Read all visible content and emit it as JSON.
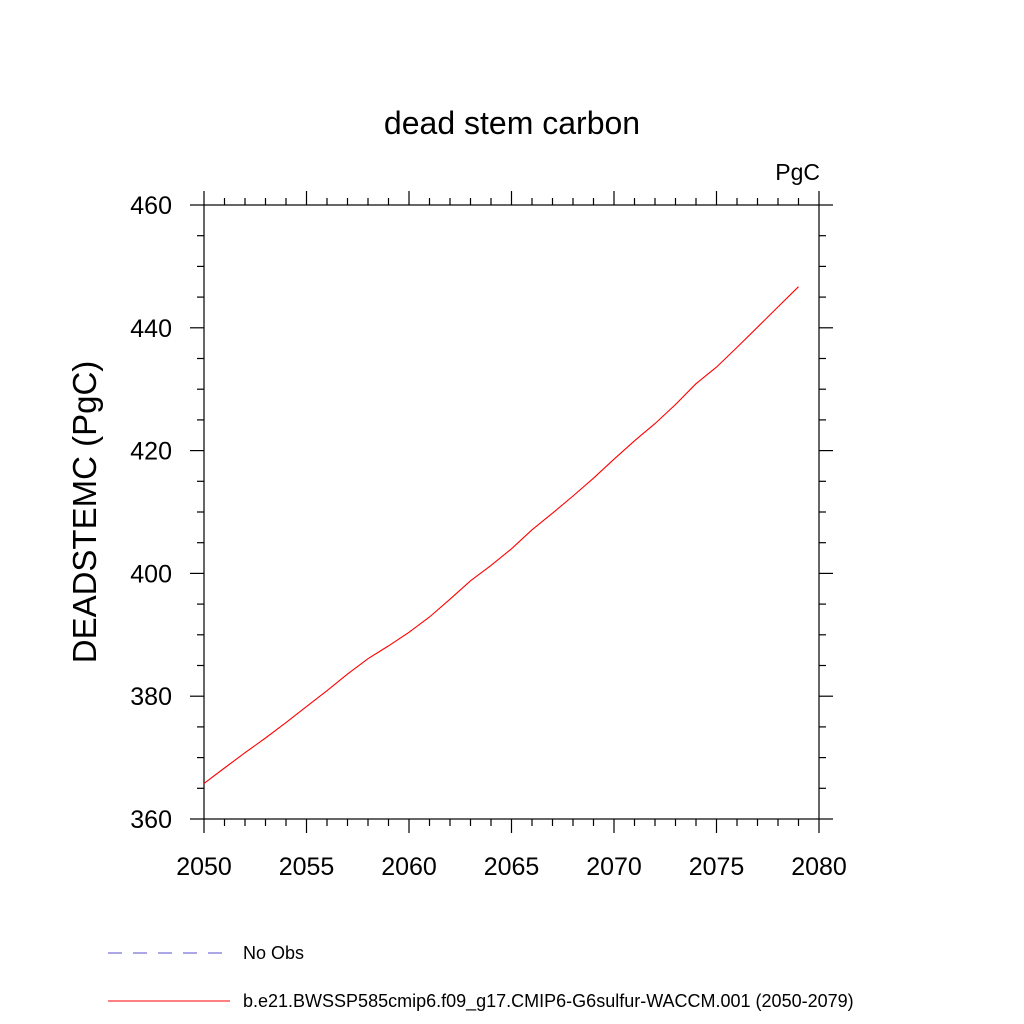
{
  "chart_data": {
    "type": "line",
    "title": "dead stem carbon",
    "units_label": "PgC",
    "xlabel": "",
    "ylabel": "DEADSTEMC  (PgC)",
    "xlim": [
      2050,
      2080
    ],
    "ylim": [
      360,
      460
    ],
    "x_ticks": [
      "2050",
      "2055",
      "2060",
      "2065",
      "2070",
      "2075",
      "2080"
    ],
    "y_ticks": [
      "360",
      "380",
      "400",
      "420",
      "440",
      "460"
    ],
    "grid": false,
    "legend_position": "bottom",
    "legend": [
      {
        "label": "No Obs",
        "color": "#5a4fcf",
        "dash": "dashed"
      },
      {
        "label": "b.e21.BWSSP585cmip6.f09_g17.CMIP6-G6sulfur-WACCM.001 (2050-2079)",
        "color": "#ff0000",
        "dash": "solid"
      }
    ],
    "series": [
      {
        "name": "b.e21.BWSSP585cmip6.f09_g17.CMIP6-G6sulfur-WACCM.001 (2050-2079)",
        "color": "#ff0000",
        "x": [
          2050,
          2051,
          2052,
          2053,
          2054,
          2055,
          2056,
          2057,
          2058,
          2059,
          2060,
          2061,
          2062,
          2063,
          2064,
          2065,
          2066,
          2067,
          2068,
          2069,
          2070,
          2071,
          2072,
          2073,
          2074,
          2075,
          2076,
          2077,
          2078,
          2079
        ],
        "y": [
          365.8,
          368.3,
          370.8,
          373.2,
          375.7,
          378.3,
          380.9,
          383.6,
          386.1,
          388.2,
          390.4,
          392.9,
          395.8,
          398.8,
          401.3,
          404.0,
          407.1,
          409.8,
          412.6,
          415.5,
          418.6,
          421.6,
          424.4,
          427.5,
          430.9,
          433.6,
          436.8,
          440.1,
          443.4,
          446.7
        ]
      }
    ]
  }
}
